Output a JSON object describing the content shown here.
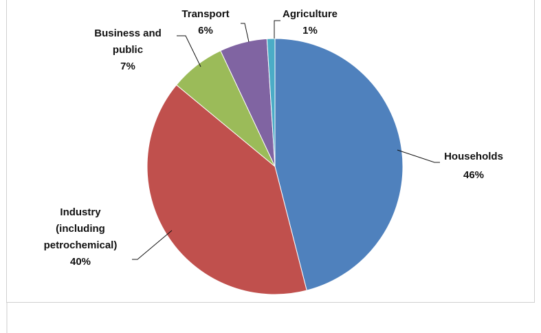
{
  "chart_data": {
    "type": "pie",
    "title": "",
    "slices": [
      {
        "label": "Households",
        "percent_label": "46%",
        "value": 46,
        "color": "#4F81BD"
      },
      {
        "label": "Industry (including petrochemical)",
        "percent_label": "40%",
        "value": 40,
        "color": "#C0504D"
      },
      {
        "label": "Business and public",
        "percent_label": "7%",
        "value": 7,
        "color": "#9BBB59"
      },
      {
        "label": "Transport",
        "percent_label": "6%",
        "value": 6,
        "color": "#8064A2"
      },
      {
        "label": "Agriculture",
        "percent_label": "1%",
        "value": 1,
        "color": "#4BACC6"
      }
    ],
    "label_lines": {
      "households": [
        "Households",
        "46%"
      ],
      "industry": [
        "Industry",
        "(including",
        "petrochemical)",
        "40%"
      ],
      "business": [
        "Business and",
        "public",
        "7%"
      ],
      "transport": [
        "Transport",
        "6%"
      ],
      "agriculture": [
        "Agriculture",
        "1%"
      ]
    },
    "legend": "none"
  }
}
